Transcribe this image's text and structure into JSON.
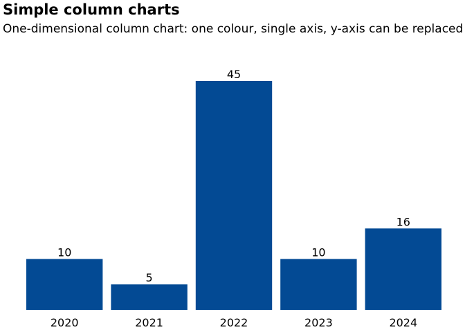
{
  "title": "Simple column charts",
  "subtitle": "One-dimensional column chart: one colour, single axis, y-axis can be replaced",
  "colors": {
    "bar": "#034a94",
    "text": "#000000",
    "background": "#ffffff"
  },
  "chart_data": {
    "type": "bar",
    "title": "Simple column charts",
    "subtitle": "One-dimensional column chart: one colour, single axis, y-axis can be replaced",
    "categories": [
      "2020",
      "2021",
      "2022",
      "2023",
      "2024"
    ],
    "values": [
      10,
      5,
      45,
      10,
      16
    ],
    "data_labels": [
      "10",
      "5",
      "45",
      "10",
      "16"
    ],
    "xlabel": "",
    "ylabel": "",
    "ylim": [
      0,
      45
    ],
    "y_axis_visible": false,
    "grid": false,
    "legend": "none",
    "bar_color": "#034a94"
  }
}
